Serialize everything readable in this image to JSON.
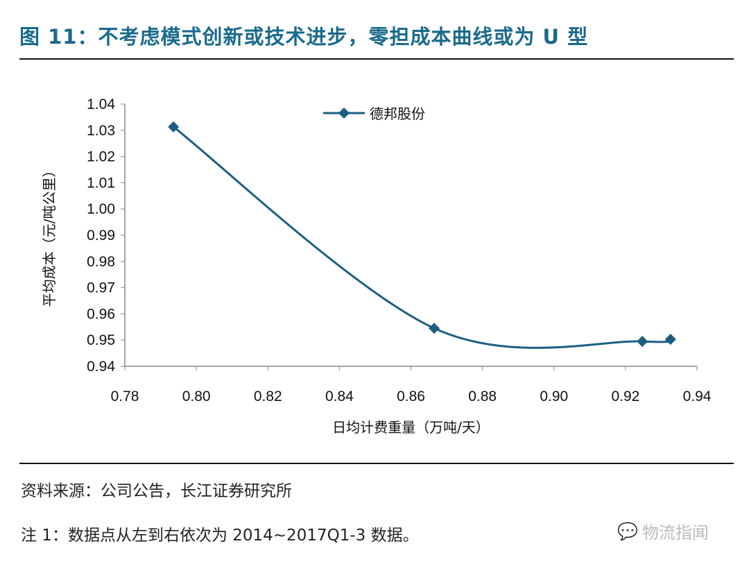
{
  "title": "图 11：不考虑模式创新或技术进步，零担成本曲线或为 U 型",
  "source": "资料来源：公司公告，长江证券研究所",
  "footnote": "注 1：数据点从左到右依次为 2014~2017Q1-3 数据。",
  "watermark": "物流指闻",
  "chart_data": {
    "type": "line",
    "smooth": true,
    "title": "",
    "xlabel": "日均计费重量（万吨/天）",
    "ylabel": "平均成本（元/吨公里）",
    "xlim": [
      0.78,
      0.94
    ],
    "ylim": [
      0.94,
      1.04
    ],
    "xticks": [
      "0.78",
      "0.80",
      "0.82",
      "0.84",
      "0.86",
      "0.88",
      "0.90",
      "0.92",
      "0.94"
    ],
    "yticks": [
      "1.04",
      "1.03",
      "1.02",
      "1.01",
      "1.00",
      "0.99",
      "0.98",
      "0.97",
      "0.96",
      "0.95",
      "0.94"
    ],
    "grid": false,
    "legend": "top-center",
    "series": [
      {
        "name": "德邦股份",
        "color": "#1b5e82",
        "marker": "diamond",
        "x": [
          0.7936,
          0.8665,
          0.9247,
          0.9326
        ],
        "y": [
          1.0313,
          0.9545,
          0.9495,
          0.9503
        ]
      }
    ]
  }
}
